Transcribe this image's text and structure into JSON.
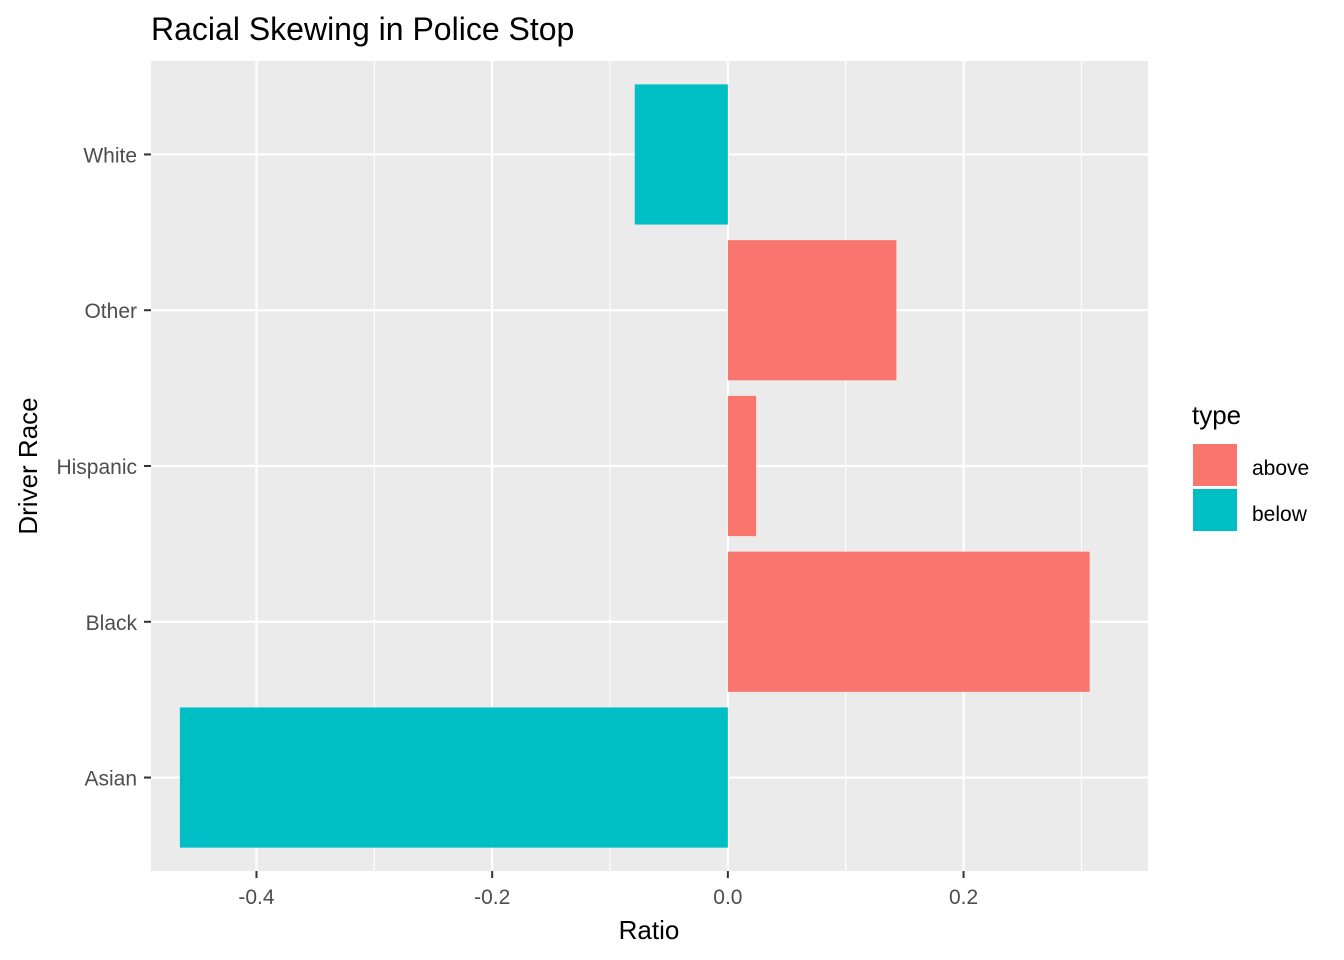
{
  "chart_data": {
    "type": "bar",
    "orientation": "horizontal",
    "title": "Racial Skewing in Police Stop",
    "xlabel": "Ratio",
    "ylabel": "Driver Race",
    "categories": [
      "Asian",
      "Black",
      "Hispanic",
      "Other",
      "White"
    ],
    "values": [
      -0.465,
      0.307,
      0.024,
      0.143,
      -0.079
    ],
    "types": [
      "below",
      "above",
      "above",
      "above",
      "below"
    ],
    "xlim": [
      -0.5,
      0.35
    ],
    "xticks": [
      -0.4,
      -0.2,
      0.0,
      0.2
    ],
    "xtick_labels": [
      "-0.4",
      "-0.2",
      "0.0",
      "0.2"
    ],
    "grid": true,
    "legend": {
      "title": "type",
      "position": "right",
      "entries": [
        {
          "label": "above",
          "color": "#F8766D"
        },
        {
          "label": "below",
          "color": "#00BFC4"
        }
      ]
    },
    "colors": {
      "above": "#F8766D",
      "below": "#00BFC4",
      "panel_background": "#EBEBEB",
      "grid": "#FFFFFF"
    }
  }
}
